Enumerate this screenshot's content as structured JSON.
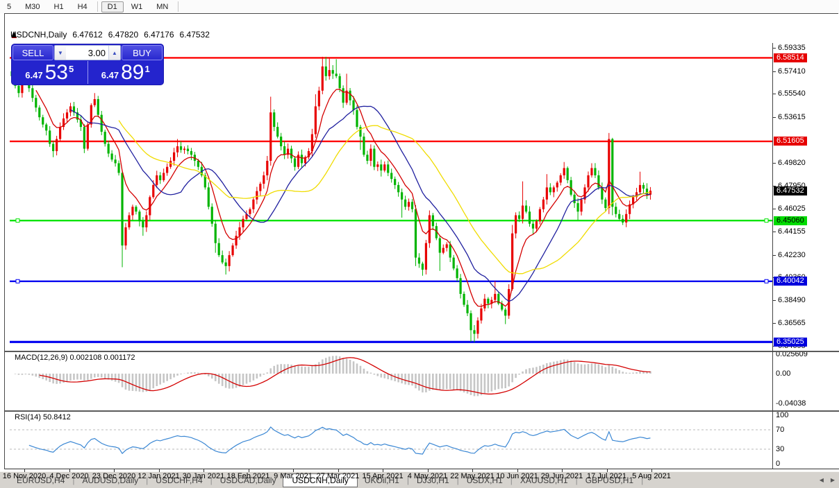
{
  "colors": {
    "up_candle": "#e80000",
    "down_candle": "#00b400",
    "ma_fast": "#d40000",
    "ma_mid": "#20209f",
    "ma_slow": "#f0dc00",
    "macd_hist": "#c6c6c6",
    "macd_signal": "#d40000",
    "rsi_line": "#3a87d4",
    "level_red": "#fe0000",
    "level_green": "#00e400",
    "level_blue": "#0000f0",
    "badge_red": "#e60000",
    "badge_green": "#00dc00",
    "badge_blue": "#0000dc",
    "badge_black": "#000000"
  },
  "toolbar": {
    "items": [
      {
        "label": "5",
        "type": "item",
        "active": false
      },
      {
        "label": "M30",
        "type": "item",
        "active": false
      },
      {
        "label": "H1",
        "type": "item",
        "active": false
      },
      {
        "label": "H4",
        "type": "item",
        "active": false
      },
      {
        "label": "",
        "type": "sep",
        "active": false
      },
      {
        "label": "D1",
        "type": "item",
        "active": true
      },
      {
        "label": "W1",
        "type": "item",
        "active": false
      },
      {
        "label": "MN",
        "type": "item",
        "active": false
      },
      {
        "label": "",
        "type": "sep",
        "active": false
      }
    ]
  },
  "titlebar": {
    "symbol": "USDCNH,Daily",
    "open": "6.47612",
    "high": "6.47820",
    "low": "6.47176",
    "close": "6.47532"
  },
  "trade_panel": {
    "sell_label": "SELL",
    "buy_label": "BUY",
    "volume": "3.00",
    "sell_price_prefix": "6.47",
    "sell_price_big": "53",
    "sell_price_sup": "5",
    "buy_price_prefix": "6.47",
    "buy_price_big": "89",
    "buy_price_sup": "1"
  },
  "chart_data": {
    "type": "candlestick",
    "symbol": "USDCNH",
    "timeframe": "Daily",
    "x_labels": [
      "16 Nov 2020",
      "4 Dec 2020",
      "23 Dec 2020",
      "12 Jan 2021",
      "30 Jan 2021",
      "18 Feb 2021",
      "9 Mar 2021",
      "27 Mar 2021",
      "15 Apr 2021",
      "4 May 2021",
      "22 May 2021",
      "10 Jun 2021",
      "29 Jun 2021",
      "17 Jul 2021",
      "5 Aug 2021"
    ],
    "first_open": 6.574,
    "closes": [
      6.57,
      6.562,
      6.556,
      6.565,
      6.572,
      6.56,
      6.552,
      6.544,
      6.536,
      6.53,
      6.525,
      6.514,
      6.508,
      6.518,
      6.528,
      6.535,
      6.54,
      6.545,
      6.54,
      6.534,
      6.528,
      6.51,
      6.53,
      6.546,
      6.551,
      6.538,
      6.524,
      6.514,
      6.506,
      6.501,
      6.498,
      6.49,
      6.43,
      6.445,
      6.455,
      6.462,
      6.458,
      6.45,
      6.445,
      6.455,
      6.47,
      6.48,
      6.488,
      6.484,
      6.49,
      6.495,
      6.5,
      6.507,
      6.512,
      6.509,
      6.51,
      6.508,
      6.505,
      6.5,
      6.495,
      6.488,
      6.478,
      6.462,
      6.448,
      6.432,
      6.422,
      6.416,
      6.413,
      6.422,
      6.43,
      6.438,
      6.445,
      6.452,
      6.456,
      6.46,
      6.468,
      6.475,
      6.481,
      6.488,
      6.5,
      6.54,
      6.528,
      6.52,
      6.512,
      6.505,
      6.51,
      6.502,
      6.495,
      6.505,
      6.498,
      6.503,
      6.508,
      6.522,
      6.545,
      6.558,
      6.578,
      6.57,
      6.575,
      6.572,
      6.57,
      6.56,
      6.548,
      6.558,
      6.55,
      6.542,
      6.528,
      6.52,
      6.505,
      6.5,
      6.51,
      6.495,
      6.497,
      6.492,
      6.497,
      6.49,
      6.485,
      6.48,
      6.474,
      6.468,
      6.462,
      6.466,
      6.46,
      6.42,
      6.415,
      6.41,
      6.432,
      6.455,
      6.446,
      6.436,
      6.424,
      6.428,
      6.431,
      6.42,
      6.411,
      6.403,
      6.39,
      6.381,
      6.374,
      6.36,
      6.357,
      6.368,
      6.378,
      6.386,
      6.382,
      6.385,
      6.39,
      6.382,
      6.377,
      6.372,
      6.394,
      6.44,
      6.455,
      6.452,
      6.463,
      6.458,
      6.448,
      6.444,
      6.45,
      6.46,
      6.468,
      6.478,
      6.474,
      6.478,
      6.482,
      6.488,
      6.494,
      6.484,
      6.472,
      6.465,
      6.458,
      6.468,
      6.478,
      6.488,
      6.494,
      6.488,
      6.478,
      6.468,
      6.461,
      6.518,
      6.462,
      6.456,
      6.452,
      6.449,
      6.456,
      6.464,
      6.47,
      6.474,
      6.48,
      6.477,
      6.472,
      6.4753
    ],
    "wick_overrides": {
      "4": [
        6.578,
        null
      ],
      "12": [
        null,
        6.503
      ],
      "24": [
        6.556,
        null
      ],
      "32": [
        null,
        6.412
      ],
      "38": [
        null,
        6.438
      ],
      "48": [
        6.518,
        null
      ],
      "59": [
        null,
        6.424
      ],
      "62": [
        null,
        6.406
      ],
      "75": [
        6.553,
        6.496
      ],
      "88": [
        6.555,
        null
      ],
      "90": [
        6.586,
        null
      ],
      "91": [
        6.586,
        null
      ],
      "92": [
        6.5855,
        null
      ],
      "94": [
        6.584,
        null
      ],
      "97": [
        6.572,
        null
      ],
      "101": [
        null,
        6.509
      ],
      "107": [
        null,
        6.487
      ],
      "113": [
        null,
        6.453
      ],
      "117": [
        null,
        6.413
      ],
      "119": [
        null,
        6.405
      ],
      "121": [
        6.459,
        null
      ],
      "124": [
        null,
        6.409
      ],
      "133": [
        null,
        6.3505
      ],
      "134": [
        null,
        6.35
      ],
      "140": [
        6.4005,
        null
      ],
      "143": [
        null,
        6.365
      ],
      "145": [
        6.447,
        null
      ],
      "148": [
        6.483,
        null
      ],
      "151": [
        null,
        6.439
      ],
      "155": [
        6.489,
        null
      ],
      "160": [
        6.499,
        null
      ],
      "164": [
        null,
        6.451
      ],
      "168": [
        6.498,
        null
      ],
      "173": [
        6.523,
        6.456
      ],
      "174": [
        6.519,
        6.455
      ],
      "176": [
        null,
        6.4505
      ],
      "182": [
        6.491,
        null
      ]
    },
    "levels": [
      {
        "price": 6.58514,
        "color_key": "level_red",
        "width": 2.4,
        "handles": false
      },
      {
        "price": 6.51605,
        "color_key": "level_red",
        "width": 2.4,
        "handles": false
      },
      {
        "price": 6.4506,
        "color_key": "level_green",
        "width": 2.4,
        "handles": true
      },
      {
        "price": 6.40042,
        "color_key": "level_blue",
        "width": 2.4,
        "handles": true
      },
      {
        "price": 6.35025,
        "color_key": "level_blue",
        "width": 3.2,
        "handles": false
      }
    ],
    "price_axis": {
      "plain_labels": [
        "6.59335",
        "6.57410",
        "6.55540",
        "6.53615",
        "6.49820",
        "6.47950",
        "6.46025",
        "6.44155",
        "6.42230",
        "6.40360",
        "6.38490",
        "6.36565",
        "6.34695"
      ],
      "badges": [
        {
          "text": "6.58514",
          "value": 6.58514,
          "bg_key": "badge_red",
          "fg": "#ffffff"
        },
        {
          "text": "6.51605",
          "value": 6.51605,
          "bg_key": "badge_red",
          "fg": "#ffffff"
        },
        {
          "text": "6.47532",
          "value": 6.47532,
          "bg_key": "badge_black",
          "fg": "#ffffff"
        },
        {
          "text": "6.45060",
          "value": 6.4506,
          "bg_key": "badge_green",
          "fg": "#000000"
        },
        {
          "text": "6.40042",
          "value": 6.40042,
          "bg_key": "badge_blue",
          "fg": "#ffffff"
        },
        {
          "text": "6.35025",
          "value": 6.35025,
          "bg_key": "badge_blue",
          "fg": "#ffffff"
        }
      ]
    },
    "moving_averages": [
      {
        "method": "ema",
        "period": 8,
        "color_key": "ma_fast"
      },
      {
        "method": "sma",
        "period": 18,
        "color_key": "ma_mid"
      },
      {
        "method": "sma",
        "period": 32,
        "color_key": "ma_slow"
      }
    ],
    "macd": {
      "label": "MACD(12,26,9)",
      "value": "0.002108",
      "signal": "0.001172",
      "fast": 12,
      "slow": 26,
      "signal_period": 9,
      "axis_labels": [
        "0.025609",
        "0.00",
        "-0.04038"
      ],
      "axis_values": [
        0.025609,
        0,
        -0.04038
      ]
    },
    "rsi": {
      "label": "RSI(14)",
      "value": "50.8412",
      "period": 14,
      "axis_labels": [
        "100",
        "70",
        "30",
        "0"
      ],
      "axis_values": [
        100,
        70,
        30,
        0
      ],
      "guides": [
        70,
        30
      ]
    },
    "last_close": 6.47532
  },
  "tabs": {
    "items": [
      {
        "label": "EURUSD,H4"
      },
      {
        "label": "AUDUSD,Daily"
      },
      {
        "label": "USDCHF,H4"
      },
      {
        "label": "USDCAD,Daily"
      },
      {
        "label": "USDCNH,Daily"
      },
      {
        "label": "UKOil,H1"
      },
      {
        "label": "DJ30,H1"
      },
      {
        "label": "USDX,H1"
      },
      {
        "label": "XAUUSD,H1"
      },
      {
        "label": "GBPUSD,H1"
      }
    ],
    "active_index": 4,
    "left_arrow": "◀",
    "right_arrow": "▶"
  }
}
